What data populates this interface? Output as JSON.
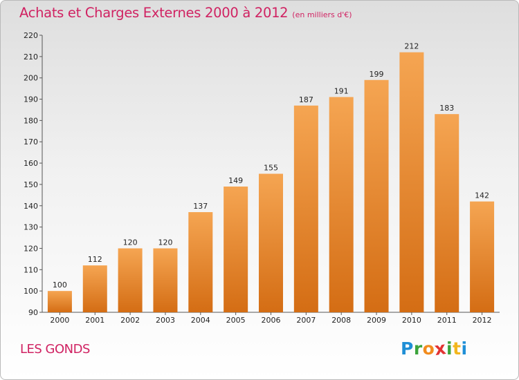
{
  "title": "Achats et Charges Externes 2000 à 2012",
  "subtitle": "(en milliers d'€)",
  "commune": "LES GONDS",
  "logo": {
    "letters": [
      "P",
      "r",
      "o",
      "x",
      "i",
      "t",
      "i"
    ],
    "colors": [
      "#1f8fd6",
      "#3ca43c",
      "#f28c1e",
      "#e23232",
      "#3ca43c",
      "#f2b61e",
      "#1f8fd6"
    ]
  },
  "colors": {
    "bar_top": "#f5a552",
    "bar_bottom": "#d46d14",
    "title": "#d02262"
  },
  "chart_data": {
    "type": "bar",
    "title": "Achats et Charges Externes 2000 à 2012",
    "subtitle": "(en milliers d'€)",
    "categories": [
      "2000",
      "2001",
      "2002",
      "2003",
      "2004",
      "2005",
      "2006",
      "2007",
      "2008",
      "2009",
      "2010",
      "2011",
      "2012"
    ],
    "values": [
      100,
      112,
      120,
      120,
      137,
      149,
      155,
      187,
      191,
      199,
      212,
      183,
      142
    ],
    "ylim": [
      90,
      220
    ],
    "yticks": [
      90,
      100,
      110,
      120,
      130,
      140,
      150,
      160,
      170,
      180,
      190,
      200,
      210,
      220
    ],
    "grid": false,
    "legend": "none"
  }
}
